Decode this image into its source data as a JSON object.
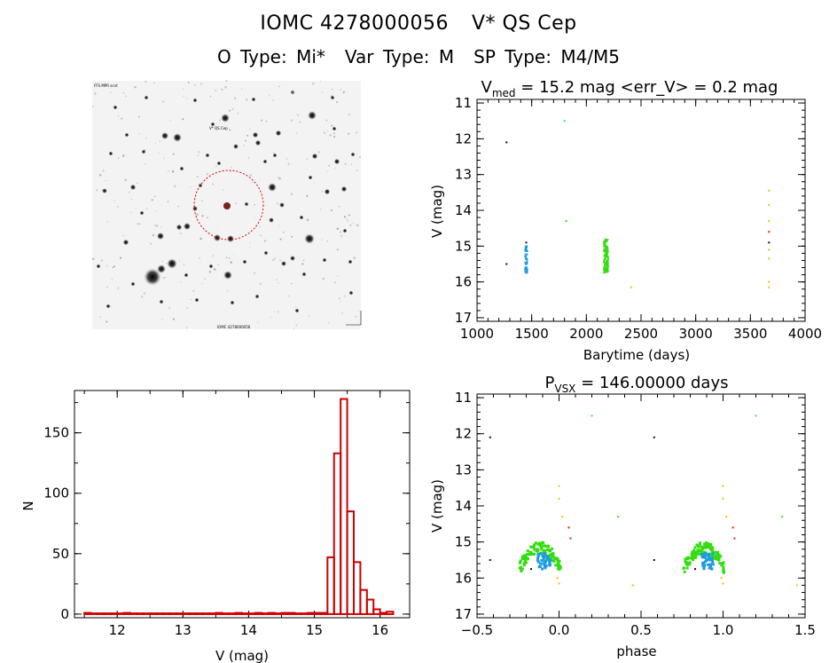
{
  "header": {
    "star_id": "IOMC 4278000056",
    "star_name": "V* QS Cep",
    "o_type": "O Type: Mi*",
    "var_type": "Var Type: M",
    "sp_type": "SP Type: M4/M5"
  },
  "finder_chart": {
    "top_left_label": "FFS MPR scnt",
    "target_label": "V* QS Cep",
    "bottom_label": "IOMC 4278000056"
  },
  "colors": {
    "axes": "#000000",
    "hist": "#cc0000",
    "dark": "#111111",
    "blue": "#1e9be0",
    "green": "#33dd11",
    "cyan": "#22ddcc",
    "yellow": "#f0c000",
    "orange": "#ff9900",
    "red": "#dd2200"
  },
  "chart_data": [
    {
      "id": "lightcurve",
      "type": "scatter",
      "title_main": "V",
      "title_sub": "med",
      "title_rest": " = 15.2 mag <err_V> = 0.2 mag",
      "xlabel": "Barytime (days)",
      "ylabel": "V (mag)",
      "xlim": [
        1000,
        4000
      ],
      "ylim": [
        17.1,
        10.9
      ],
      "xticks": [
        1000,
        1500,
        2000,
        2500,
        3000,
        3500,
        4000
      ],
      "yticks": [
        11,
        12,
        13,
        14,
        15,
        16,
        17
      ],
      "points": [
        {
          "x": 1270,
          "y": 12.1,
          "c": "dark"
        },
        {
          "x": 1270,
          "y": 15.5,
          "c": "dark"
        },
        {
          "x": 1800,
          "y": 11.5,
          "c": "cyan"
        },
        {
          "x": 1815,
          "y": 14.3,
          "c": "green"
        },
        {
          "x": 2410,
          "y": 16.15,
          "c": "yellow"
        },
        {
          "x": 3670,
          "y": 13.45,
          "c": "yellow"
        },
        {
          "x": 3670,
          "y": 13.85,
          "c": "yellow"
        },
        {
          "x": 3670,
          "y": 14.3,
          "c": "yellow"
        },
        {
          "x": 3670,
          "y": 14.6,
          "c": "red"
        },
        {
          "x": 3670,
          "y": 14.9,
          "c": "dark"
        },
        {
          "x": 3670,
          "y": 15.1,
          "c": "yellow"
        },
        {
          "x": 3670,
          "y": 15.35,
          "c": "yellow"
        },
        {
          "x": 3670,
          "y": 16.0,
          "c": "yellow"
        },
        {
          "x": 3670,
          "y": 16.15,
          "c": "yellow"
        },
        {
          "x": 1450,
          "y": 14.9,
          "c": "dark"
        }
      ],
      "clusters": [
        {
          "name": "blue-season",
          "x": [
            1440,
            1460
          ],
          "y": [
            15.0,
            15.75
          ],
          "n": 60,
          "c": "blue"
        },
        {
          "name": "green-season",
          "x": [
            2160,
            2200
          ],
          "y": [
            14.8,
            15.75
          ],
          "n": 120,
          "c": "green"
        }
      ]
    },
    {
      "id": "histogram",
      "type": "bar",
      "xlabel": "V (mag)",
      "ylabel": "N",
      "xlim": [
        11.35,
        16.45
      ],
      "ylim": [
        -3,
        185
      ],
      "xticks": [
        12,
        13,
        14,
        15,
        16
      ],
      "yticks": [
        0,
        50,
        100,
        150
      ],
      "bin_width": 0.1,
      "bin_start": 11.5,
      "counts": [
        1,
        0,
        0,
        0,
        0,
        0,
        1,
        0,
        0,
        0,
        0,
        0,
        0,
        0,
        0,
        0,
        0,
        0,
        0,
        0,
        1,
        0,
        0,
        1,
        0,
        0,
        1,
        0,
        1,
        0,
        1,
        1,
        0,
        0,
        1,
        1,
        1,
        47,
        133,
        178,
        85,
        43,
        20,
        12,
        4,
        1,
        2
      ]
    },
    {
      "id": "phaseplot",
      "type": "scatter",
      "title_main": "P",
      "title_sub": "VSX",
      "title_rest": " = 146.00000 days",
      "xlabel": "phase",
      "ylabel": "V (mag)",
      "xlim": [
        -0.5,
        1.5
      ],
      "ylim": [
        17.1,
        10.9
      ],
      "xticks": [
        -0.5,
        0.0,
        0.5,
        1.0,
        1.5
      ],
      "xtick_labels": [
        "−0.5",
        "0.0",
        "0.5",
        "1.0",
        "1.5"
      ],
      "yticks": [
        11,
        12,
        13,
        14,
        15,
        16,
        17
      ],
      "points": [
        {
          "x": -0.42,
          "y": 12.1,
          "c": "dark"
        },
        {
          "x": -0.42,
          "y": 15.5,
          "c": "dark"
        },
        {
          "x": 0.2,
          "y": 11.5,
          "c": "cyan"
        },
        {
          "x": 0.36,
          "y": 14.3,
          "c": "green"
        },
        {
          "x": 0.45,
          "y": 16.2,
          "c": "yellow"
        },
        {
          "x": 0.0,
          "y": 13.45,
          "c": "yellow"
        },
        {
          "x": 0.0,
          "y": 13.8,
          "c": "yellow"
        },
        {
          "x": 0.02,
          "y": 14.3,
          "c": "yellow"
        },
        {
          "x": 0.06,
          "y": 14.6,
          "c": "red"
        },
        {
          "x": 0.07,
          "y": 14.9,
          "c": "red"
        },
        {
          "x": -0.01,
          "y": 16.0,
          "c": "yellow"
        },
        {
          "x": 0.0,
          "y": 16.15,
          "c": "yellow"
        },
        {
          "x": -0.17,
          "y": 15.75,
          "c": "dark"
        },
        {
          "x": 0.58,
          "y": 12.1,
          "c": "dark"
        },
        {
          "x": 0.58,
          "y": 15.5,
          "c": "dark"
        },
        {
          "x": 1.2,
          "y": 11.5,
          "c": "cyan"
        },
        {
          "x": 1.36,
          "y": 14.3,
          "c": "green"
        },
        {
          "x": 1.45,
          "y": 16.2,
          "c": "yellow"
        },
        {
          "x": 1.0,
          "y": 13.45,
          "c": "yellow"
        },
        {
          "x": 1.0,
          "y": 13.8,
          "c": "yellow"
        },
        {
          "x": 1.02,
          "y": 14.3,
          "c": "yellow"
        },
        {
          "x": 1.06,
          "y": 14.6,
          "c": "red"
        },
        {
          "x": 1.07,
          "y": 14.9,
          "c": "red"
        },
        {
          "x": 0.99,
          "y": 16.0,
          "c": "yellow"
        },
        {
          "x": 1.0,
          "y": 16.15,
          "c": "yellow"
        },
        {
          "x": 0.83,
          "y": 15.75,
          "c": "dark"
        }
      ],
      "clusters": [
        {
          "name": "green-arc-1",
          "x": [
            -0.24,
            0.01
          ],
          "y": [
            15.0,
            15.85
          ],
          "n": 120,
          "c": "green",
          "shape": "arc"
        },
        {
          "name": "blue-1",
          "x": [
            -0.13,
            -0.05
          ],
          "y": [
            15.3,
            15.75
          ],
          "n": 40,
          "c": "blue"
        },
        {
          "name": "green-arc-2",
          "x": [
            0.76,
            1.01
          ],
          "y": [
            15.0,
            15.85
          ],
          "n": 120,
          "c": "green",
          "shape": "arc"
        },
        {
          "name": "blue-2",
          "x": [
            0.87,
            0.95
          ],
          "y": [
            15.3,
            15.75
          ],
          "n": 40,
          "c": "blue"
        }
      ]
    }
  ]
}
